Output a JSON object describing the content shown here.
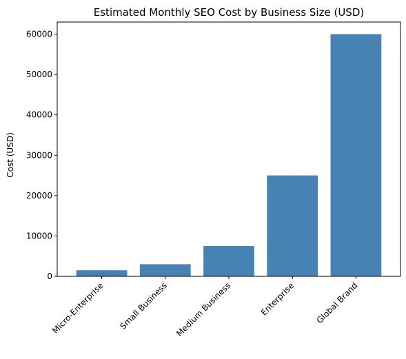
{
  "chart_data": {
    "type": "bar",
    "title": "Estimated Monthly SEO Cost by Business Size (USD)",
    "xlabel": "",
    "ylabel": "Cost (USD)",
    "categories": [
      "Micro-Enterprise",
      "Small Business",
      "Medium Business",
      "Enterprise",
      "Global Brand"
    ],
    "values": [
      1500,
      3000,
      7500,
      25000,
      60000
    ],
    "ylim": [
      0,
      63000
    ],
    "yticks": [
      0,
      10000,
      20000,
      30000,
      40000,
      50000,
      60000
    ],
    "bar_color": "#4682b4",
    "grid": false,
    "legend": "none"
  }
}
